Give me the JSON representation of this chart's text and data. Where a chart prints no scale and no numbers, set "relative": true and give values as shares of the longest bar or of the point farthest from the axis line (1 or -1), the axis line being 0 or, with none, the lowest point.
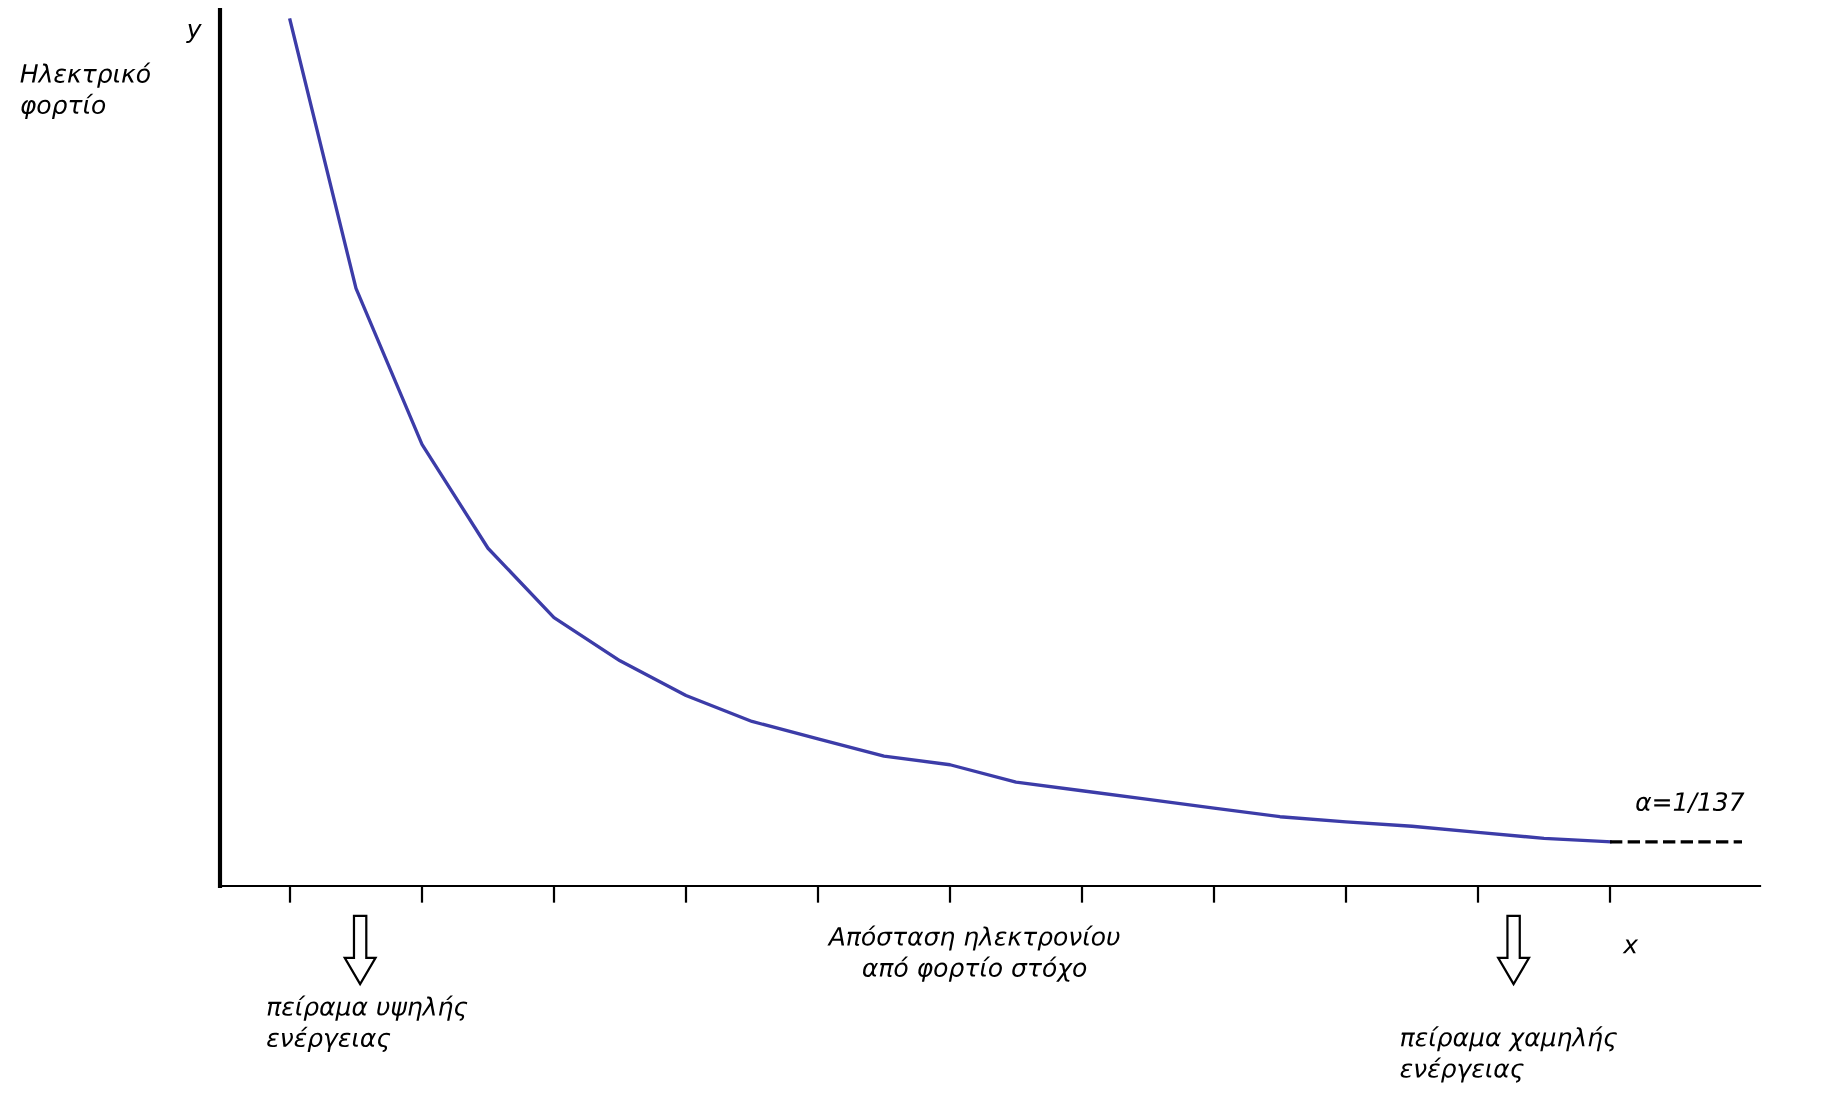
{
  "chart_data": {
    "type": "line",
    "relative": true,
    "xlabel": "x",
    "ylabel": "y",
    "categories": [
      null,
      null,
      null,
      null,
      null,
      null,
      null,
      null,
      null,
      null,
      null,
      null,
      null,
      null,
      null,
      null,
      null,
      null,
      null,
      null,
      null,
      null,
      null
    ],
    "series": [
      {
        "color": "#3c3ca8",
        "values": [
          1,
          0.69,
          0.51,
          0.39,
          0.31,
          0.26,
          0.22,
          0.19,
          0.17,
          0.15,
          0.14,
          0.12,
          0.11,
          0.1,
          0.09,
          0.08,
          0.074,
          0.069,
          0.062,
          0.055,
          0.051,
          null,
          null
        ]
      },
      {
        "color": "#000000",
        "line_style": "dashed",
        "values": [
          null,
          null,
          null,
          null,
          null,
          null,
          null,
          null,
          null,
          null,
          null,
          null,
          null,
          null,
          null,
          null,
          null,
          null,
          null,
          null,
          0.051,
          0.051,
          0.051
        ]
      }
    ],
    "annotations": [
      "Ηλεκτρικό\nφορτίο",
      "Απόσταση ηλεκτρονίου\nαπό φορτίο στόχο",
      "πείραμα υψηλής\nενέργειας",
      "πείραμα χαμηλής\nενέργειας",
      "α=1/137"
    ],
    "grid": false,
    "legend": false,
    "marker": "none",
    "line_style": "solid"
  }
}
